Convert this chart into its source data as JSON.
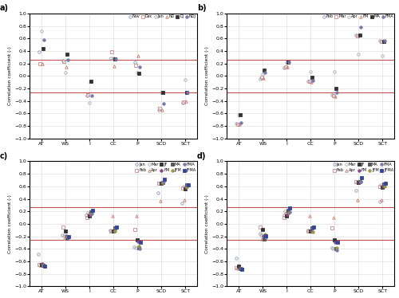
{
  "xlabels": [
    "AT",
    "WS",
    "I",
    "CC",
    "P",
    "SCD",
    "SCT"
  ],
  "ylabel": "Correlation coefficient (-)",
  "hline_color": "#c0504d",
  "panel_a": {
    "title": "a)",
    "legend_labels": [
      "Nov",
      "Dec",
      "Jan",
      "ND",
      "DJ",
      "NDJ"
    ],
    "data": {
      "AT": [
        0.39,
        0.19,
        0.72,
        0.2,
        0.44,
        0.58
      ],
      "WS": [
        0.25,
        0.23,
        0.05,
        0.14,
        0.35,
        0.26
      ],
      "I": [
        -0.31,
        -0.3,
        -0.43,
        -0.09,
        -0.09,
        -0.32
      ],
      "CC": [
        0.28,
        0.38,
        0.28,
        0.16,
        0.27,
        0.27
      ],
      "P": [
        0.22,
        0.17,
        0.05,
        0.32,
        0.04,
        0.15
      ],
      "SCD": [
        -0.54,
        -0.52,
        -0.27,
        -0.54,
        -0.26,
        -0.44
      ],
      "SCT": [
        -0.43,
        -0.42,
        -0.06,
        -0.4,
        -0.26,
        -0.27
      ]
    }
  },
  "panel_b": {
    "title": "b)",
    "legend_labels": [
      "Feb",
      "Mar",
      "Apr",
      "FM",
      "MA",
      "FMA"
    ],
    "data": {
      "AT": [
        -0.76,
        -0.77,
        -0.62,
        -0.77,
        -0.62,
        -0.75
      ],
      "WS": [
        -0.05,
        -0.02,
        0.03,
        -0.04,
        0.09,
        0.05
      ],
      "I": [
        0.13,
        0.14,
        0.22,
        0.14,
        0.22,
        0.22
      ],
      "CC": [
        -0.09,
        -0.08,
        0.07,
        -0.1,
        -0.02,
        -0.07
      ],
      "P": [
        -0.3,
        -0.31,
        0.07,
        -0.33,
        -0.2,
        -0.27
      ],
      "SCD": [
        0.65,
        0.64,
        0.35,
        0.65,
        0.65,
        0.78
      ],
      "SCT": [
        0.56,
        0.55,
        0.32,
        0.56,
        0.55,
        0.56
      ]
    }
  },
  "panel_c": {
    "title": "c)",
    "legend_labels": [
      "Jan",
      "Feb",
      "Mar",
      "Apr",
      "JF",
      "FM",
      "MA",
      "JFM",
      "FMA",
      "JFMA"
    ],
    "data": {
      "AT": [
        -0.48,
        -0.65,
        -0.67,
        -0.66,
        -0.65,
        -0.64,
        -0.66,
        -0.66,
        -0.68,
        -0.68
      ],
      "WS": [
        -0.18,
        -0.05,
        -0.19,
        -0.23,
        -0.11,
        -0.19,
        -0.23,
        -0.2,
        -0.22,
        -0.2
      ],
      "I": [
        0.14,
        0.1,
        0.18,
        0.16,
        0.12,
        0.14,
        0.19,
        0.16,
        0.17,
        0.22
      ],
      "CC": [
        -0.1,
        -0.11,
        -0.11,
        0.13,
        -0.11,
        -0.11,
        -0.07,
        -0.12,
        -0.07,
        -0.05
      ],
      "P": [
        -0.37,
        -0.09,
        -0.38,
        0.12,
        -0.26,
        -0.28,
        -0.38,
        -0.36,
        -0.4,
        -0.3
      ],
      "SCD": [
        0.5,
        0.65,
        0.65,
        0.37,
        0.65,
        0.65,
        0.66,
        0.66,
        0.67,
        0.71
      ],
      "SCT": [
        0.33,
        0.57,
        0.6,
        0.38,
        0.56,
        0.58,
        0.62,
        0.59,
        0.62,
        0.62
      ]
    }
  },
  "panel_d": {
    "title": "d)",
    "legend_labels": [
      "Jan",
      "Feb",
      "Mar",
      "Apr",
      "JF",
      "FM",
      "MA",
      "JFM",
      "FMA",
      "JFMA"
    ],
    "data": {
      "AT": [
        -0.55,
        -0.7,
        -0.71,
        -0.7,
        -0.68,
        -0.7,
        -0.71,
        -0.71,
        -0.72,
        -0.73
      ],
      "WS": [
        -0.15,
        -0.05,
        -0.18,
        -0.24,
        -0.09,
        -0.19,
        -0.24,
        -0.17,
        -0.22,
        -0.19
      ],
      "I": [
        0.14,
        0.1,
        0.2,
        0.18,
        0.12,
        0.15,
        0.21,
        0.18,
        0.19,
        0.25
      ],
      "CC": [
        -0.1,
        -0.12,
        -0.11,
        0.12,
        -0.12,
        -0.12,
        -0.07,
        -0.13,
        -0.07,
        -0.05
      ],
      "P": [
        -0.38,
        -0.07,
        -0.4,
        0.1,
        -0.26,
        -0.3,
        -0.4,
        -0.38,
        -0.42,
        -0.3
      ],
      "SCD": [
        0.53,
        0.67,
        0.66,
        0.38,
        0.66,
        0.66,
        0.68,
        0.67,
        0.68,
        0.74
      ],
      "SCT": [
        0.35,
        0.6,
        0.62,
        0.38,
        0.58,
        0.6,
        0.64,
        0.6,
        0.63,
        0.65
      ]
    }
  },
  "series_ab": {
    "colors": [
      "#8899bb",
      "#cc8888",
      "#aaaaaa",
      "#cc7766",
      "#333333",
      "#7777aa"
    ],
    "markers": [
      "o",
      "s",
      "o",
      "^",
      "s",
      "o"
    ],
    "filled": [
      false,
      false,
      false,
      false,
      true,
      true
    ],
    "ms": 2.5
  },
  "series_cd": {
    "colors": [
      "#8899bb",
      "#cc8888",
      "#aaaaaa",
      "#cc7766",
      "#333333",
      "#884488",
      "#555555",
      "#999944",
      "#7777aa",
      "#334499"
    ],
    "markers": [
      "o",
      "s",
      "o",
      "^",
      "s",
      "o",
      "s",
      "o",
      "o",
      "s"
    ],
    "filled": [
      false,
      false,
      false,
      false,
      true,
      true,
      true,
      true,
      true,
      true
    ],
    "ms": 2.5
  }
}
